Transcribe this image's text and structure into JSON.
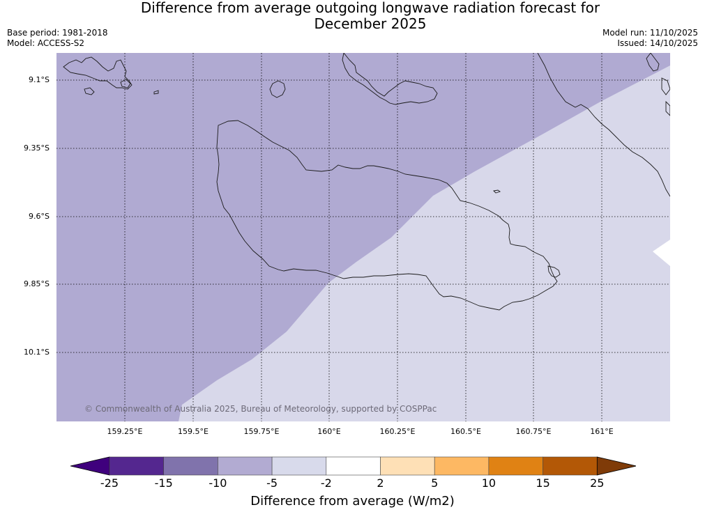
{
  "title": {
    "line1": "Difference from average outgoing longwave radiation forecast for",
    "line2": "December 2025"
  },
  "info": {
    "base_period": "Base period: 1981-2018",
    "model": "Model: ACCESS-S2",
    "model_run": "Model run: 11/10/2025",
    "issued": "Issued: 14/10/2025"
  },
  "map": {
    "lat_labels": [
      "9.1°S",
      "9.35°S",
      "9.6°S",
      "9.85°S",
      "10.1°S"
    ],
    "lon_labels": [
      "159.25°E",
      "159.5°E",
      "159.75°E",
      "160°E",
      "160.25°E",
      "160.5°E",
      "160.75°E",
      "161°E"
    ],
    "copyright": "© Commonwealth of Australia 2025, Bureau of Meteorology, supported by COSPPac",
    "fill_colors": {
      "minus10_to_minus5": "#b0aad2",
      "minus5_to_minus2": "#d8d8ea",
      "neutral": "#ffffff"
    }
  },
  "colorbar": {
    "title": "Difference from average (W/m2)",
    "tick_labels": [
      "-25",
      "-15",
      "-10",
      "-5",
      "-2",
      "2",
      "5",
      "10",
      "15",
      "25"
    ],
    "colors": [
      "#3f007d",
      "#54278f",
      "#8073ac",
      "#b2abd2",
      "#d8daeb",
      "#ffffff",
      "#fee0b6",
      "#fdb863",
      "#e08214",
      "#b35806",
      "#7f3b08"
    ]
  }
}
